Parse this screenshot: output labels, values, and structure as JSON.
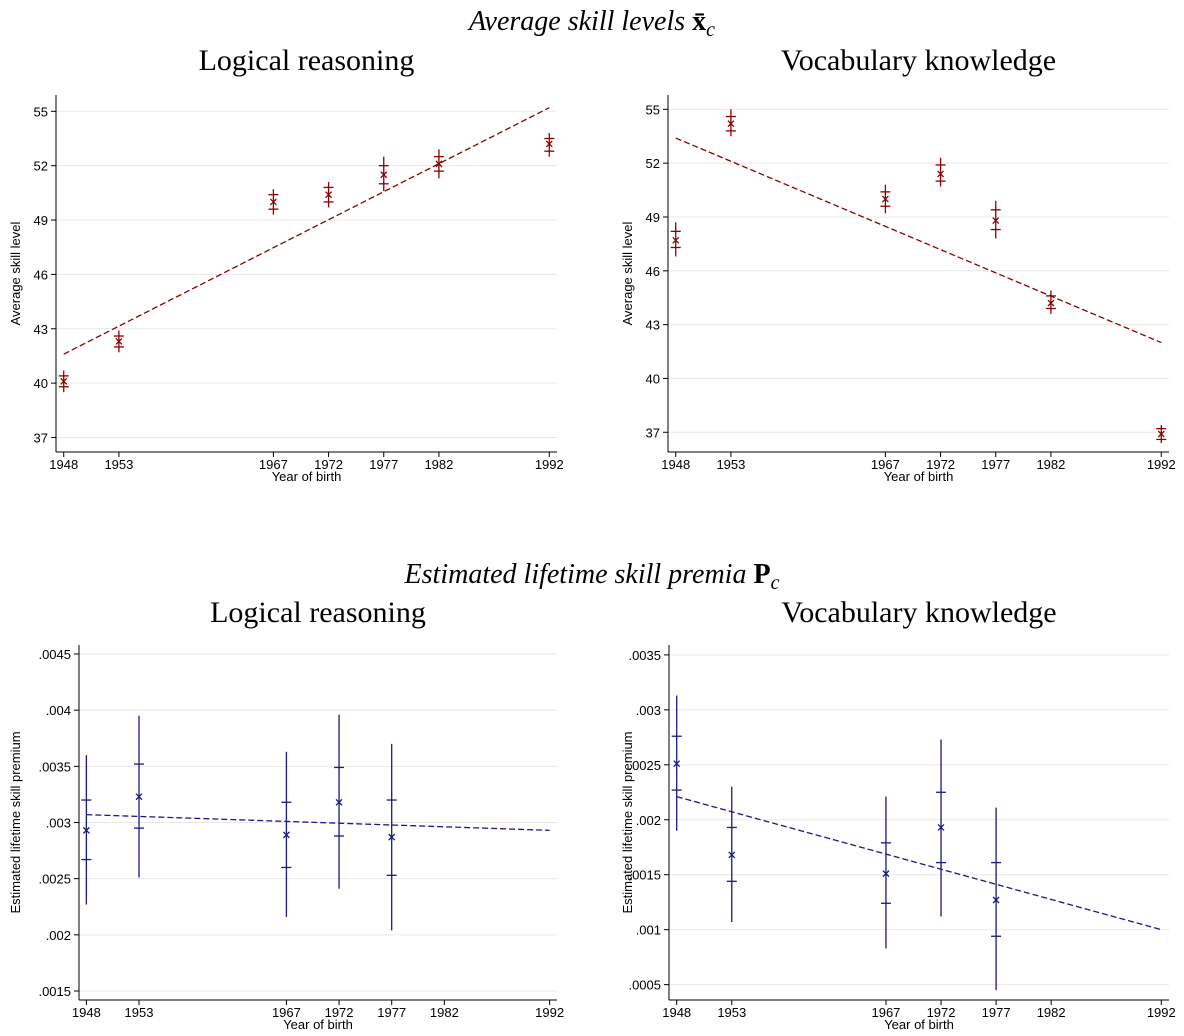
{
  "sections": [
    {
      "text": "Average skill levels",
      "symbol": "x̄",
      "subscript": "c"
    },
    {
      "text": "Estimated lifetime skill premia",
      "symbol": "P",
      "subscript": "c"
    }
  ],
  "chart_data": [
    {
      "type": "scatter",
      "title": "Logical reasoning",
      "xlabel": "Year of birth",
      "ylabel": "Average skill level",
      "xlim": [
        1947.3,
        1992.7
      ],
      "xticks": [
        1948,
        1953,
        1967,
        1972,
        1977,
        1982,
        1992
      ],
      "ylim": [
        36.2,
        55.9
      ],
      "yticks": [
        37,
        40,
        43,
        46,
        49,
        52,
        55
      ],
      "grid": true,
      "series": [
        {
          "color": "#8b0000",
          "x": [
            1948,
            1953,
            1967,
            1972,
            1977,
            1982,
            1992
          ],
          "values": [
            40.1,
            42.3,
            50.0,
            50.4,
            51.5,
            52.1,
            53.2
          ],
          "ci_inner_lo": [
            39.8,
            42.0,
            49.6,
            50.0,
            51.0,
            51.7,
            52.8
          ],
          "ci_inner_hi": [
            40.4,
            42.6,
            50.4,
            50.8,
            52.0,
            52.5,
            53.5
          ],
          "ci_outer_lo": [
            39.5,
            41.7,
            49.3,
            49.7,
            50.6,
            51.3,
            52.5
          ],
          "ci_outer_hi": [
            40.7,
            42.9,
            50.7,
            51.1,
            52.5,
            52.9,
            53.8
          ]
        }
      ],
      "fit": {
        "color": "#8b0000",
        "x": [
          1948,
          1992
        ],
        "values": [
          41.6,
          55.2
        ]
      }
    },
    {
      "type": "scatter",
      "title": "Vocabulary knowledge",
      "xlabel": "Year of birth",
      "ylabel": "Average skill level",
      "xlim": [
        1947.3,
        1992.7
      ],
      "xticks": [
        1948,
        1953,
        1967,
        1972,
        1977,
        1982,
        1992
      ],
      "ylim": [
        35.9,
        55.8
      ],
      "yticks": [
        37,
        40,
        43,
        46,
        49,
        52,
        55
      ],
      "grid": true,
      "series": [
        {
          "color": "#8b0000",
          "x": [
            1948,
            1953,
            1967,
            1972,
            1977,
            1982,
            1992
          ],
          "values": [
            47.7,
            54.2,
            50.0,
            51.4,
            48.8,
            44.2,
            36.9
          ],
          "ci_inner_lo": [
            47.3,
            53.8,
            49.6,
            51.0,
            48.3,
            43.9,
            36.6
          ],
          "ci_inner_hi": [
            48.2,
            54.6,
            50.4,
            51.9,
            49.4,
            44.6,
            37.2
          ],
          "ci_outer_lo": [
            46.8,
            53.5,
            49.2,
            50.7,
            47.8,
            43.6,
            36.4
          ],
          "ci_outer_hi": [
            48.7,
            55.0,
            50.8,
            52.3,
            49.9,
            44.9,
            37.4
          ]
        }
      ],
      "fit": {
        "color": "#8b0000",
        "x": [
          1948,
          1992
        ],
        "values": [
          53.4,
          42.0
        ]
      }
    },
    {
      "type": "scatter",
      "title": "Logical reasoning",
      "xlabel": "Year of birth",
      "ylabel": "Estimated lifetime skill premium",
      "xlim": [
        1947.3,
        1992.7
      ],
      "xticks": [
        1948,
        1953,
        1967,
        1972,
        1977,
        1982,
        1992
      ],
      "ylim": [
        0.00142,
        0.00458
      ],
      "yticks": [
        {
          "value": 0.0015,
          "label": ".0015"
        },
        {
          "value": 0.002,
          "label": ".002"
        },
        {
          "value": 0.0025,
          "label": ".0025"
        },
        {
          "value": 0.003,
          "label": ".003"
        },
        {
          "value": 0.0035,
          "label": ".0035"
        },
        {
          "value": 0.004,
          "label": ".004"
        },
        {
          "value": 0.0045,
          "label": ".0045"
        }
      ],
      "grid": true,
      "series": [
        {
          "color": "#1a1a80",
          "x": [
            1948,
            1953,
            1967,
            1972,
            1977
          ],
          "values": [
            0.00293,
            0.00323,
            0.00289,
            0.00318,
            0.00287
          ],
          "ci_inner_lo": [
            0.00267,
            0.00295,
            0.0026,
            0.00288,
            0.00253
          ],
          "ci_inner_hi": [
            0.0032,
            0.00352,
            0.00318,
            0.00349,
            0.0032
          ],
          "ci_outer_lo": [
            0.00227,
            0.00251,
            0.00216,
            0.00241,
            0.00204
          ],
          "ci_outer_hi": [
            0.0036,
            0.00395,
            0.00363,
            0.00396,
            0.0037
          ]
        }
      ],
      "fit": {
        "color": "#1a1a80",
        "x": [
          1948,
          1992
        ],
        "values": [
          0.00307,
          0.00293
        ]
      }
    },
    {
      "type": "scatter",
      "title": "Vocabulary knowledge",
      "xlabel": "Year of birth",
      "ylabel": "Estimated lifetime skill premium",
      "xlim": [
        1947.3,
        1992.7
      ],
      "xticks": [
        1948,
        1953,
        1967,
        1972,
        1977,
        1982,
        1992
      ],
      "ylim": [
        0.00036,
        0.00359
      ],
      "yticks": [
        {
          "value": 0.0005,
          "label": ".0005"
        },
        {
          "value": 0.001,
          "label": ".001"
        },
        {
          "value": 0.0015,
          "label": ".0015"
        },
        {
          "value": 0.002,
          "label": ".002"
        },
        {
          "value": 0.0025,
          "label": ".0025"
        },
        {
          "value": 0.003,
          "label": ".003"
        },
        {
          "value": 0.0035,
          "label": ".0035"
        }
      ],
      "grid": true,
      "series": [
        {
          "color": "#1a1a80",
          "x": [
            1948,
            1953,
            1967,
            1972,
            1977
          ],
          "values": [
            0.00251,
            0.00168,
            0.00151,
            0.00193,
            0.00127
          ],
          "ci_inner_lo": [
            0.00227,
            0.00144,
            0.00124,
            0.00161,
            0.00094
          ],
          "ci_inner_hi": [
            0.00276,
            0.00193,
            0.00179,
            0.00225,
            0.00161
          ],
          "ci_outer_lo": [
            0.0019,
            0.00107,
            0.00083,
            0.00112,
            0.00045
          ],
          "ci_outer_hi": [
            0.00313,
            0.0023,
            0.00221,
            0.00273,
            0.00211
          ]
        }
      ],
      "fit": {
        "color": "#1a1a80",
        "x": [
          1948,
          1992
        ],
        "values": [
          0.00221,
          0.001
        ]
      }
    }
  ]
}
